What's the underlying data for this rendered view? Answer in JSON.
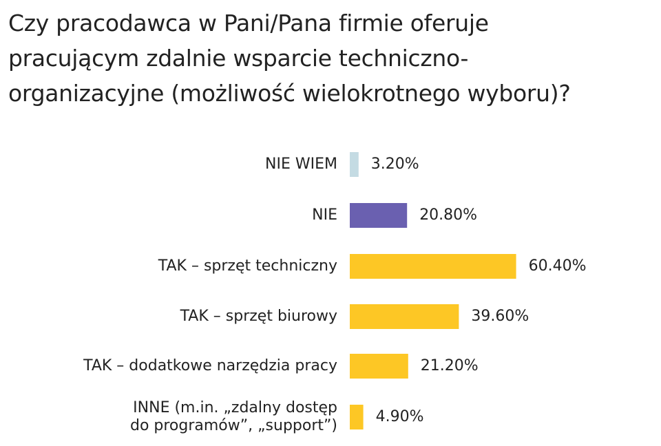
{
  "chart_data": {
    "type": "bar",
    "orientation": "horizontal",
    "title": "Czy pracodawca w Pani/Pana firmie oferuje pracującym zdalnie wsparcie techniczno-organizacyjne (możliwość wielokrotnego wyboru)?",
    "title_lines": [
      "Czy pracodawca w Pani/Pana firmie oferuje",
      "pracującym zdalnie wsparcie techniczno-",
      "organizacyjne (możliwość wielokrotnego wyboru)?"
    ],
    "categories": [
      [
        "NIE WIEM"
      ],
      [
        "NIE"
      ],
      [
        "TAK – sprzęt techniczny"
      ],
      [
        "TAK – sprzęt biurowy"
      ],
      [
        "TAK – dodatkowe narzędzia pracy"
      ],
      [
        "INNE (m.in. „zdalny dostęp",
        "do programów”, „support”)"
      ]
    ],
    "values": [
      3.2,
      20.8,
      60.4,
      39.6,
      21.2,
      4.9
    ],
    "value_labels": [
      "3.20%",
      "20.80%",
      "60.40%",
      "39.60%",
      "21.20%",
      "4.90%"
    ],
    "colors": [
      "#c4dbe3",
      "#6a60b0",
      "#fdc725",
      "#fdc725",
      "#fdc725",
      "#fdc725"
    ],
    "xlim": [
      0,
      100
    ],
    "grid": false,
    "legend": "none"
  }
}
